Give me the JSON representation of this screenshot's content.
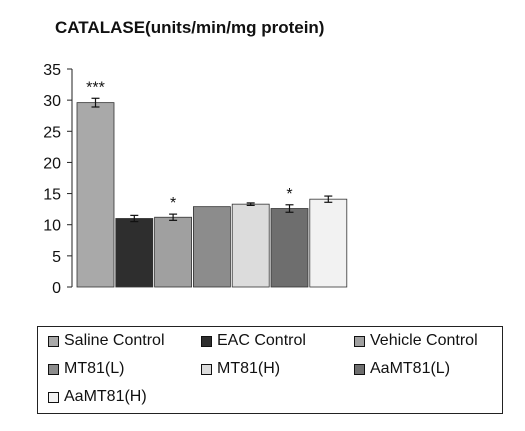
{
  "chart_data": {
    "type": "bar",
    "title": "CATALASE(units/min/mg protein)",
    "xlabel": "",
    "ylabel": "",
    "ylim": [
      0,
      35
    ],
    "yticks": [
      0,
      5,
      10,
      15,
      20,
      25,
      30,
      35
    ],
    "grid": false,
    "legend_placement": "bottom",
    "categories": [
      "Saline Control",
      "EAC Control",
      "Vehicle Control",
      "MT81(L)",
      "MT81(H)",
      "AaMT81(L)",
      "AaMT81(H)"
    ],
    "values": [
      29.6,
      11.0,
      11.2,
      12.9,
      13.3,
      12.6,
      14.1
    ],
    "errors": [
      0.7,
      0.5,
      0.5,
      0.0,
      0.2,
      0.6,
      0.5
    ],
    "significance": [
      "***",
      "",
      "*",
      "",
      "",
      "*",
      ""
    ],
    "colors": [
      "#a9a9a9",
      "#2e2e2e",
      "#a0a0a0",
      "#8c8c8c",
      "#dcdcdc",
      "#6e6e6e",
      "#f2f2f2"
    ]
  }
}
